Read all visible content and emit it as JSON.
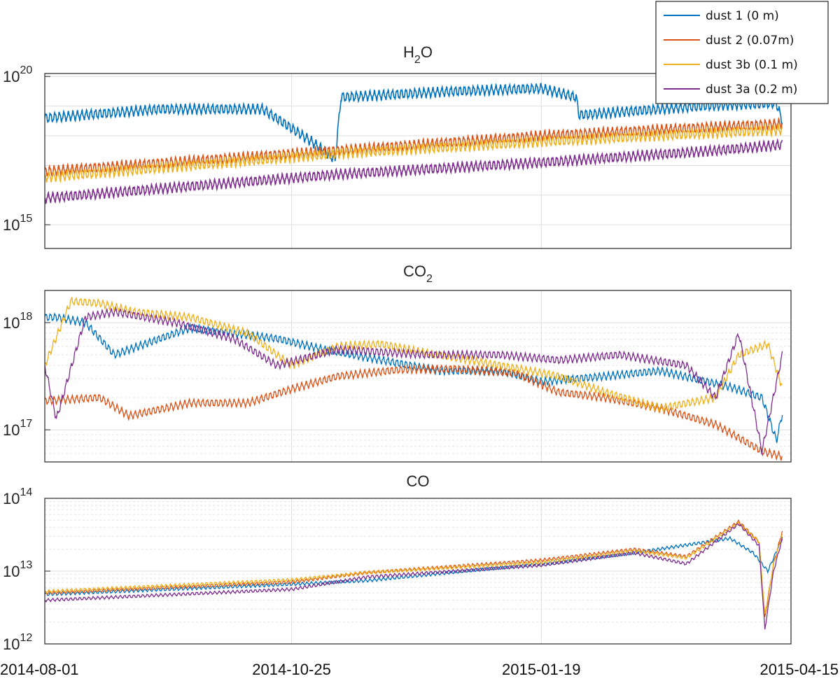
{
  "chart_data": {
    "type": "line",
    "x_ticks": [
      "2014-08-01",
      "2014-10-25",
      "2015-01-19",
      "2015-04-15"
    ],
    "xlim": [
      "2014-08-01",
      "2015-04-15"
    ],
    "grid": true,
    "legend_placement": "top-right",
    "legend": [
      {
        "key": "dust1",
        "label": "dust 1 (0 m)",
        "color": "#0072BD"
      },
      {
        "key": "dust2",
        "label": "dust 2 (0.07m)",
        "color": "#D95319"
      },
      {
        "key": "dust3b",
        "label": "dust 3b (0.1 m)",
        "color": "#EDB120"
      },
      {
        "key": "dust3a",
        "label": "dust 3a (0.2 m)",
        "color": "#7E2F8E"
      }
    ],
    "panels": [
      {
        "title": "H2O",
        "title_base": "H",
        "title_sub": "2",
        "title_tail": "O",
        "yscale": "log",
        "ylim_log10": [
          14.2,
          20.1
        ],
        "y_ticks_log10": [
          15,
          20
        ],
        "wiggle": 0.28,
        "series": [
          {
            "key": "dust1",
            "x": [
              "2014-08-01",
              "2014-09-10",
              "2014-10-15",
              "2014-11-01",
              "2014-11-09",
              "2014-11-11",
              "2014-12-20",
              "2015-01-19",
              "2015-01-31",
              "2015-02-01",
              "2015-03-15",
              "2015-04-10",
              "2015-04-12"
            ],
            "y_log10": [
              18.6,
              18.9,
              18.9,
              17.8,
              17.2,
              19.3,
              19.5,
              19.6,
              19.3,
              18.7,
              19.0,
              19.1,
              18.5
            ]
          },
          {
            "key": "dust2",
            "x": [
              "2014-08-01",
              "2014-11-10",
              "2015-01-19",
              "2015-03-20",
              "2015-04-12"
            ],
            "y_log10": [
              16.8,
              17.5,
              18.0,
              18.3,
              18.4
            ]
          },
          {
            "key": "dust3b",
            "x": [
              "2014-08-01",
              "2014-11-10",
              "2015-01-19",
              "2015-03-20",
              "2015-04-12"
            ],
            "y_log10": [
              16.6,
              17.4,
              17.8,
              18.1,
              18.2
            ]
          },
          {
            "key": "dust3a",
            "x": [
              "2014-08-01",
              "2014-11-10",
              "2015-01-19",
              "2015-03-20",
              "2015-04-12"
            ],
            "y_log10": [
              15.9,
              16.7,
              17.1,
              17.5,
              17.7
            ]
          }
        ]
      },
      {
        "title": "CO2",
        "title_base": "CO",
        "title_sub": "2",
        "title_tail": "",
        "yscale": "log",
        "ylim_log10": [
          16.7,
          18.3
        ],
        "y_ticks_log10": [
          17,
          18
        ],
        "wiggle": 0.06,
        "series": [
          {
            "key": "dust1",
            "x": [
              "2014-08-01",
              "2014-08-05",
              "2014-08-15",
              "2014-08-25",
              "2014-09-20",
              "2014-10-20",
              "2014-11-05",
              "2014-11-25",
              "2014-12-15",
              "2015-01-05",
              "2015-01-19",
              "2015-02-10",
              "2015-03-01",
              "2015-03-25",
              "2015-04-05",
              "2015-04-10",
              "2015-04-12"
            ],
            "y_log10": [
              18.05,
              18.05,
              18.0,
              17.7,
              17.95,
              17.85,
              17.75,
              17.65,
              17.55,
              17.55,
              17.45,
              17.5,
              17.55,
              17.4,
              17.3,
              16.9,
              17.15
            ]
          },
          {
            "key": "dust2",
            "x": [
              "2014-08-01",
              "2014-08-20",
              "2014-08-30",
              "2014-09-20",
              "2014-10-10",
              "2014-10-25",
              "2014-11-10",
              "2014-12-01",
              "2014-12-20",
              "2015-01-10",
              "2015-01-25",
              "2015-02-10",
              "2015-03-01",
              "2015-03-20",
              "2015-04-05",
              "2015-04-12"
            ],
            "y_log10": [
              17.27,
              17.3,
              17.13,
              17.25,
              17.25,
              17.38,
              17.5,
              17.56,
              17.57,
              17.53,
              17.35,
              17.3,
              17.2,
              17.05,
              16.8,
              16.75
            ]
          },
          {
            "key": "dust3b",
            "x": [
              "2014-08-01",
              "2014-08-10",
              "2014-08-20",
              "2014-09-01",
              "2014-09-20",
              "2014-10-10",
              "2014-10-25",
              "2014-11-10",
              "2014-11-25",
              "2014-12-10",
              "2015-01-05",
              "2015-01-25",
              "2015-02-10",
              "2015-03-01",
              "2015-03-20",
              "2015-03-28",
              "2015-04-07",
              "2015-04-12"
            ],
            "y_log10": [
              17.6,
              18.2,
              18.18,
              18.1,
              18.05,
              17.9,
              17.6,
              17.78,
              17.8,
              17.72,
              17.6,
              17.5,
              17.35,
              17.2,
              17.3,
              17.7,
              17.8,
              17.4
            ]
          },
          {
            "key": "dust3a",
            "x": [
              "2014-08-01",
              "2014-08-05",
              "2014-08-15",
              "2014-08-25",
              "2014-09-15",
              "2014-10-05",
              "2014-10-20",
              "2014-11-10",
              "2014-12-10",
              "2015-01-05",
              "2015-01-25",
              "2015-02-15",
              "2015-03-10",
              "2015-03-20",
              "2015-03-28",
              "2015-04-05",
              "2015-04-12"
            ],
            "y_log10": [
              17.6,
              17.1,
              18.05,
              18.1,
              18.0,
              17.85,
              17.6,
              17.75,
              17.7,
              17.7,
              17.65,
              17.7,
              17.6,
              17.3,
              17.9,
              16.8,
              17.7
            ]
          }
        ]
      },
      {
        "title": "CO",
        "title_base": "CO",
        "title_sub": "",
        "title_tail": "",
        "yscale": "log",
        "ylim_log10": [
          12,
          14
        ],
        "y_ticks_log10": [
          12,
          13,
          14
        ],
        "wiggle": 0.035,
        "series": [
          {
            "key": "dust1",
            "x": [
              "2014-08-01",
              "2014-10-25",
              "2014-11-20",
              "2015-01-19",
              "2015-02-20",
              "2015-03-25",
              "2015-04-02",
              "2015-04-07",
              "2015-04-12"
            ],
            "y_log10": [
              12.68,
              12.82,
              12.87,
              13.1,
              13.25,
              13.45,
              13.25,
              13.0,
              13.45
            ]
          },
          {
            "key": "dust2",
            "x": [
              "2014-08-01",
              "2014-10-25",
              "2014-11-20",
              "2015-01-19",
              "2015-02-20",
              "2015-03-10",
              "2015-03-28",
              "2015-04-04",
              "2015-04-06",
              "2015-04-09",
              "2015-04-12"
            ],
            "y_log10": [
              12.7,
              12.85,
              12.98,
              13.15,
              13.3,
              13.2,
              13.68,
              13.4,
              12.35,
              13.1,
              13.55
            ]
          },
          {
            "key": "dust3b",
            "x": [
              "2014-08-01",
              "2014-10-25",
              "2014-11-20",
              "2015-01-19",
              "2015-02-20",
              "2015-03-10",
              "2015-03-28",
              "2015-04-04",
              "2015-04-06",
              "2015-04-09",
              "2015-04-12"
            ],
            "y_log10": [
              12.72,
              12.88,
              12.98,
              13.12,
              13.28,
              13.18,
              13.66,
              13.4,
              12.4,
              13.1,
              13.5
            ]
          },
          {
            "key": "dust3a",
            "x": [
              "2014-08-01",
              "2014-10-25",
              "2014-11-20",
              "2015-01-19",
              "2015-02-20",
              "2015-03-10",
              "2015-03-28",
              "2015-04-04",
              "2015-04-06",
              "2015-04-09",
              "2015-04-12"
            ],
            "y_log10": [
              12.6,
              12.75,
              12.92,
              13.08,
              13.25,
              13.1,
              13.65,
              13.35,
              12.2,
              13.0,
              13.45
            ]
          }
        ]
      }
    ]
  }
}
